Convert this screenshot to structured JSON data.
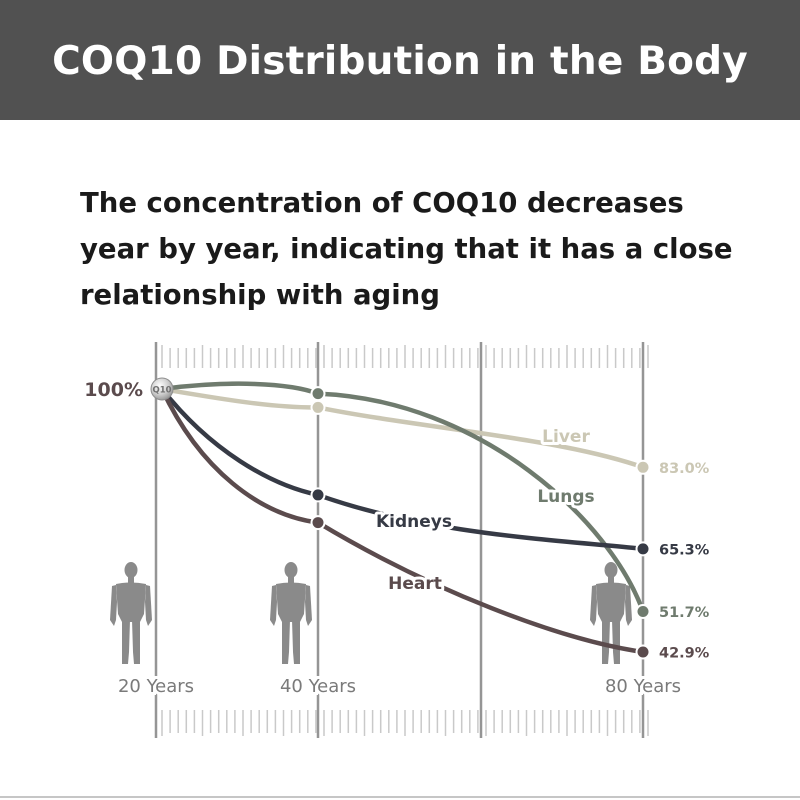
{
  "header": {
    "title": "COQ10 Distribution in the Body"
  },
  "subtitle": "The concentration of COQ10 decreases year by year, indicating that it has a close relationship with aging",
  "chart_data": {
    "type": "line",
    "x": [
      20,
      40,
      80
    ],
    "x_tick_labels": [
      "20 Years",
      "40 Years",
      "80 Years"
    ],
    "start_label": "100%",
    "start_badge": "Q10",
    "ylim": [
      40,
      100
    ],
    "series": [
      {
        "name": "Liver",
        "values": [
          100,
          96,
          83.0
        ],
        "end_label": "83.0%",
        "color": "#cbc7b4"
      },
      {
        "name": "Lungs",
        "values": [
          100,
          99,
          51.7
        ],
        "end_label": "51.7%",
        "color": "#6f7b6e"
      },
      {
        "name": "Kidneys",
        "values": [
          100,
          77,
          65.3
        ],
        "end_label": "65.3%",
        "color": "#363a45"
      },
      {
        "name": "Heart",
        "values": [
          100,
          71,
          42.9
        ],
        "end_label": "42.9%",
        "color": "#5b4b4d"
      }
    ]
  },
  "colors": {
    "header_bg": "#515151",
    "axis_gray": "#959595",
    "ruler_tick": "#c9c9c9",
    "label_gray": "#7a7a7a",
    "human_figure": "#8a8a8a"
  },
  "icons": [
    "human-figure-icon"
  ]
}
